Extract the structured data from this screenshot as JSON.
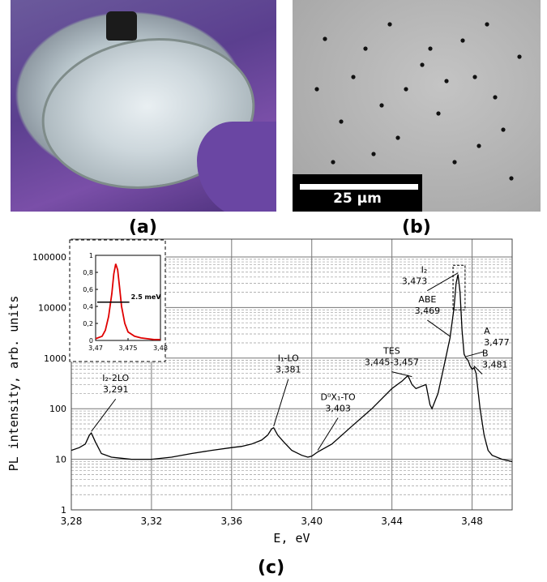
{
  "panels": {
    "a_label": "(a)",
    "b_label": "(b)",
    "c_label": "(c)",
    "scale_bar": "25 µm"
  },
  "chart_data": {
    "type": "line",
    "xlabel": "E, eV",
    "ylabel": "PL intensity, arb. units",
    "xlim": [
      3.28,
      3.5
    ],
    "ylim": [
      1,
      100000
    ],
    "yscale": "log",
    "grid": true,
    "x_ticks": [
      "3,28",
      "3,32",
      "3,36",
      "3,40",
      "3,44",
      "3,48"
    ],
    "x_tick_values": [
      3.28,
      3.32,
      3.36,
      3.4,
      3.44,
      3.48
    ],
    "y_ticks": [
      "1",
      "10",
      "100",
      "1000",
      "10000",
      "100000"
    ],
    "y_tick_values": [
      1,
      10,
      100,
      1000,
      10000,
      100000
    ],
    "series": [
      {
        "color": "#000000",
        "x": [
          3.28,
          3.284,
          3.287,
          3.289,
          3.29,
          3.292,
          3.295,
          3.3,
          3.305,
          3.31,
          3.32,
          3.33,
          3.34,
          3.35,
          3.36,
          3.365,
          3.37,
          3.375,
          3.378,
          3.38,
          3.381,
          3.383,
          3.386,
          3.39,
          3.395,
          3.398,
          3.4,
          3.403,
          3.41,
          3.42,
          3.43,
          3.44,
          3.445,
          3.448,
          3.45,
          3.452,
          3.455,
          3.457,
          3.459,
          3.46,
          3.463,
          3.466,
          3.469,
          3.471,
          3.472,
          3.473,
          3.474,
          3.475,
          3.476,
          3.477,
          3.478,
          3.479,
          3.48,
          3.481,
          3.482,
          3.484,
          3.486,
          3.488,
          3.49,
          3.495,
          3.5
        ],
        "y": [
          15,
          17,
          20,
          30,
          33,
          22,
          13,
          11,
          10.5,
          10,
          10,
          11,
          13,
          15,
          17,
          18,
          20,
          24,
          30,
          40,
          42,
          30,
          22,
          15,
          12,
          11,
          11.5,
          14,
          20,
          45,
          100,
          250,
          350,
          450,
          300,
          250,
          280,
          300,
          120,
          100,
          200,
          700,
          2500,
          10000,
          30000,
          45000,
          20000,
          3500,
          1200,
          1000,
          900,
          700,
          600,
          650,
          500,
          100,
          30,
          15,
          12,
          10,
          9
        ]
      }
    ],
    "annotations": [
      {
        "line1": "I₂-2LO",
        "line2": "3,291",
        "x": 3.29,
        "y": 33
      },
      {
        "line1": "I₁-LO",
        "line2": "3,381",
        "x": 3.381,
        "y": 42
      },
      {
        "line1": "D⁰X₁-TO",
        "line2": "3,403",
        "x": 3.403,
        "y": 14
      },
      {
        "line1": "TES",
        "line2": "3,445-3,457",
        "x": 3.45,
        "y": 400
      },
      {
        "line1": "ABE",
        "line2": "3,469",
        "x": 3.469,
        "y": 2500
      },
      {
        "line1": "I₂",
        "line2": "3,473",
        "x": 3.473,
        "y": 45000
      },
      {
        "line1": "A",
        "line2": "3,477",
        "x": 3.477,
        "y": 1000
      },
      {
        "line1": "B",
        "line2": "3,481",
        "x": 3.481,
        "y": 650
      }
    ],
    "inset": {
      "type": "line",
      "color": "#e00000",
      "xlim": [
        3.47,
        3.48
      ],
      "ylim": [
        0,
        1.0
      ],
      "x_ticks": [
        "3,47",
        "3,475",
        "3,48"
      ],
      "x_tick_values": [
        3.47,
        3.475,
        3.48
      ],
      "y_ticks": [
        "0",
        "0,2",
        "0,4",
        "0,6",
        "0,8",
        "1"
      ],
      "y_tick_values": [
        0,
        0.2,
        0.4,
        0.6,
        0.8,
        1.0
      ],
      "x": [
        3.47,
        3.471,
        3.4715,
        3.472,
        3.4725,
        3.4728,
        3.4731,
        3.4734,
        3.4737,
        3.474,
        3.4745,
        3.475,
        3.476,
        3.477,
        3.478,
        3.479,
        3.48
      ],
      "y": [
        0.02,
        0.05,
        0.12,
        0.28,
        0.55,
        0.78,
        0.9,
        0.83,
        0.62,
        0.4,
        0.2,
        0.1,
        0.05,
        0.03,
        0.02,
        0.01,
        0.01
      ],
      "fwhm_label": "2.5 meV"
    }
  }
}
